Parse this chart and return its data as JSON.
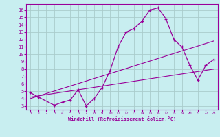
{
  "xlabel": "Windchill (Refroidissement éolien,°C)",
  "bg_color": "#c8eef0",
  "line_color": "#990099",
  "grid_color": "#aacccc",
  "xlim": [
    -0.5,
    23.5
  ],
  "ylim": [
    2.5,
    16.8
  ],
  "xticks": [
    0,
    1,
    2,
    3,
    4,
    5,
    6,
    7,
    8,
    9,
    10,
    11,
    12,
    13,
    14,
    15,
    16,
    17,
    18,
    19,
    20,
    21,
    22,
    23
  ],
  "yticks": [
    3,
    4,
    5,
    6,
    7,
    8,
    9,
    10,
    11,
    12,
    13,
    14,
    15,
    16
  ],
  "line1_x": [
    0,
    1,
    3,
    4,
    5,
    6,
    7,
    8,
    9,
    10,
    11,
    12,
    13,
    14,
    15,
    16,
    17,
    18,
    19,
    20,
    21,
    22,
    23
  ],
  "line1_y": [
    4.8,
    4.2,
    3.1,
    3.5,
    3.8,
    5.2,
    3.0,
    4.0,
    5.5,
    7.8,
    11.0,
    13.0,
    13.5,
    14.5,
    16.0,
    16.3,
    14.8,
    12.0,
    11.0,
    8.5,
    6.5,
    8.5,
    9.3
  ],
  "line2_x": [
    0,
    23
  ],
  "line2_y": [
    4.2,
    8.0
  ],
  "line3_x": [
    0,
    23
  ],
  "line3_y": [
    4.0,
    11.8
  ]
}
